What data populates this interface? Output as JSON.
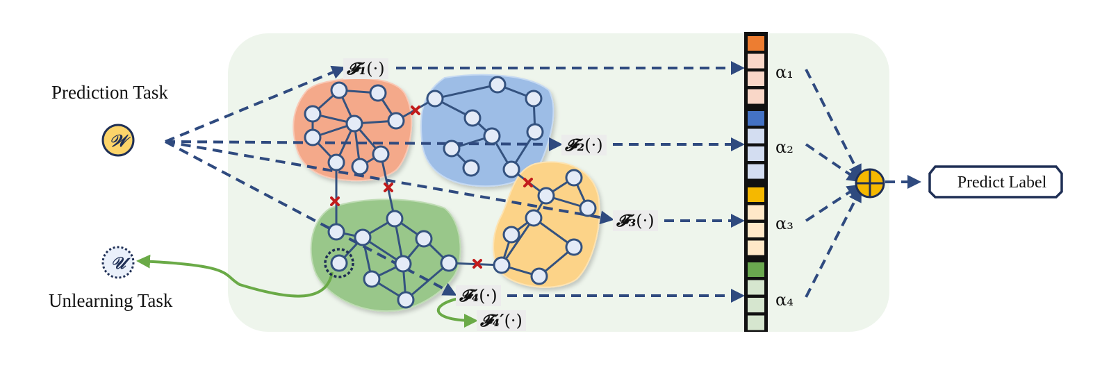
{
  "tasks": {
    "prediction": "Prediction Task",
    "unlearning": "Unlearning Task"
  },
  "symbols": {
    "w": "𝒲",
    "u": "𝒰"
  },
  "functions": [
    {
      "id": "f1",
      "name": "𝓕₁",
      "args": "(·)"
    },
    {
      "id": "f2",
      "name": "𝓕₂",
      "args": "(·)"
    },
    {
      "id": "f3",
      "name": "𝓕₃",
      "args": "(·)"
    },
    {
      "id": "f4",
      "name": "𝓕₄",
      "args": "(·)"
    },
    {
      "id": "f4p",
      "name": "𝓕₄′",
      "args": "(·)"
    }
  ],
  "weights": [
    "α₁",
    "α₂",
    "α₃",
    "α₄"
  ],
  "output": {
    "label": "Predict Label",
    "aggregator": "⊕"
  },
  "colors": {
    "background_panel": "#eef5ec",
    "arrow": "#2f4a7f",
    "unlearn_arrow": "#6aaa47",
    "cut_mark": "#c21c1c",
    "node_fill": "#e4ebf7",
    "node_stroke": "#34527f",
    "cluster_red": "#f4a98a",
    "cluster_blue": "#9dbde6",
    "cluster_yellow": "#fcd388",
    "cluster_green": "#99c78a",
    "strip_orange": "#ed7d31",
    "strip_blue": "#4472c4",
    "strip_gold": "#f5b800",
    "strip_green": "#6aa84f",
    "aggregator": "#f5b800"
  }
}
